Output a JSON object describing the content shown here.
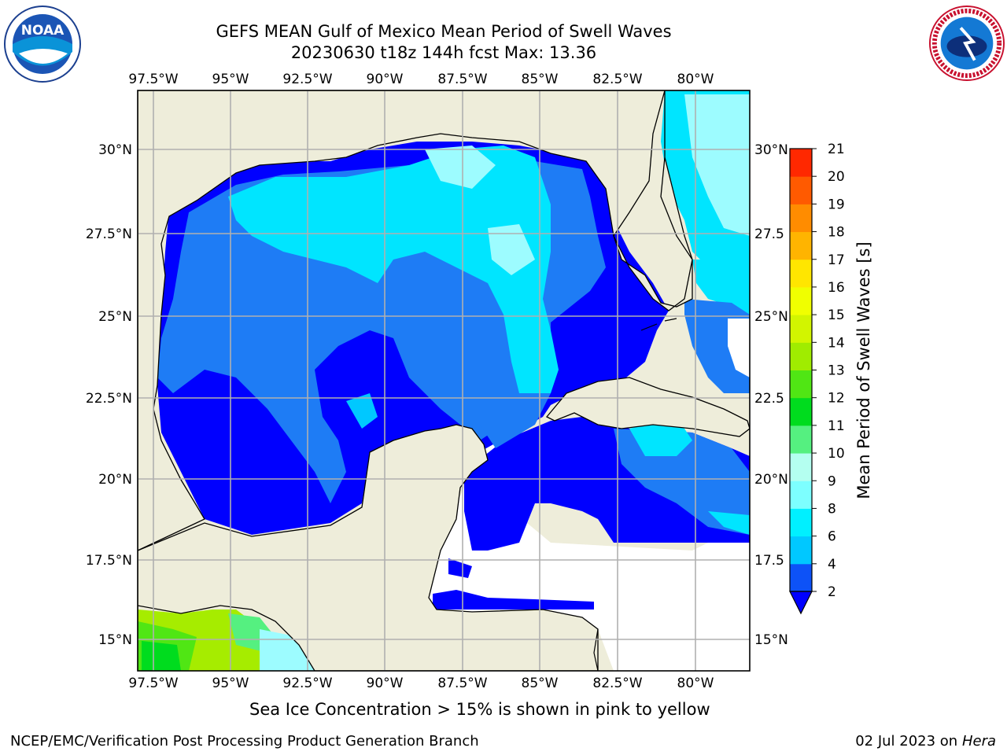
{
  "header": {
    "title_line1": "GEFS MEAN Gulf of Mexico Mean Period of Swell Waves",
    "title_line2": "20230630 t18z 144h fcst   Max: 13.36"
  },
  "map": {
    "lon_labels": [
      "97.5°W",
      "95°W",
      "92.5°W",
      "90°W",
      "87.5°W",
      "85°W",
      "82.5°W",
      "80°W"
    ],
    "lat_labels_left": [
      "30°N",
      "27.5°N",
      "25°N",
      "22.5°N",
      "20°N",
      "17.5°N",
      "15°N"
    ],
    "lat_labels_right": [
      "30°N",
      "27.5",
      "25°N",
      "22.5",
      "20°N",
      "17.5",
      "15°N"
    ],
    "colors": {
      "land": "#eeedda",
      "ocean_no_data": "#ffffff",
      "grid": "#b0b0b0"
    }
  },
  "colorbar": {
    "label": "Mean Period of Swell Waves [s]",
    "ticks": [
      "2",
      "4",
      "6",
      "8",
      "9",
      "10",
      "11",
      "12",
      "13",
      "14",
      "15",
      "16",
      "17",
      "18",
      "19",
      "20",
      "21"
    ],
    "colors": [
      "#0d52f7",
      "#00c8ff",
      "#00f0ff",
      "#7dffff",
      "#b4fff0",
      "#55f080",
      "#00dc1e",
      "#50e614",
      "#a0ec00",
      "#d2f500",
      "#f0ff00",
      "#ffe600",
      "#ffb400",
      "#ff8c00",
      "#ff5a00",
      "#ff2800"
    ],
    "extend_color": "#0000ff"
  },
  "footnote": "Sea Ice Concentration > 15% is shown in pink to yellow",
  "footer": {
    "left": "NCEP/EMC/Verification Post Processing Product Generation Branch",
    "right_date": "02 Jul 2023 on ",
    "right_machine": "Hera"
  },
  "logos": {
    "left": "noaa-logo",
    "right": "nws-logo"
  }
}
